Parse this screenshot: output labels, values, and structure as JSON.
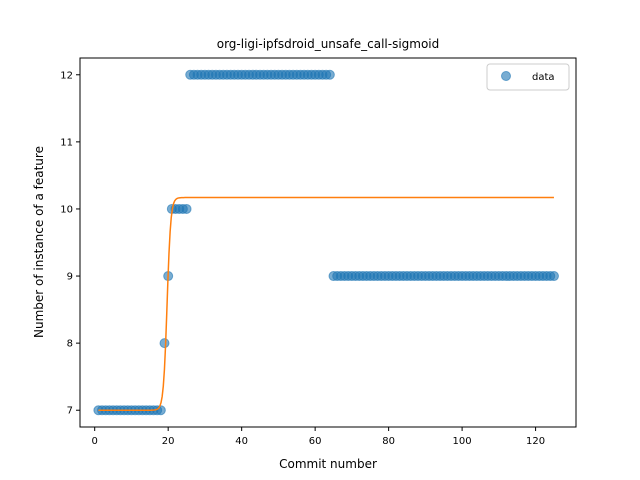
{
  "chart_data": {
    "type": "scatter",
    "title": "org-ligi-ipfsdroid_unsafe_call-sigmoid",
    "xlabel": "Commit number",
    "ylabel": "Number of instance of a feature",
    "xlim": [
      -4,
      131
    ],
    "ylim": [
      6.75,
      12.25
    ],
    "x_ticks": [
      0,
      20,
      40,
      60,
      80,
      100,
      120
    ],
    "y_ticks": [
      7,
      8,
      9,
      10,
      11,
      12
    ],
    "grid": false,
    "legend_position": "top-right",
    "series": [
      {
        "name": "data",
        "kind": "scatter",
        "color": "#1f77b4",
        "segments": [
          {
            "x_start": 1,
            "x_end": 18,
            "y": 7
          },
          {
            "x_start": 19,
            "x_end": 19,
            "y": 8
          },
          {
            "x_start": 20,
            "x_end": 20,
            "y": 9
          },
          {
            "x_start": 21,
            "x_end": 25,
            "y": 10
          },
          {
            "x_start": 26,
            "x_end": 64,
            "y": 12
          },
          {
            "x_start": 65,
            "x_end": 125,
            "y": 9
          }
        ]
      },
      {
        "name": "",
        "kind": "line",
        "color": "#ff7f0e",
        "sigmoid": {
          "x_start": 1,
          "x_end": 125,
          "low": 7.0,
          "high": 10.17,
          "midpoint": 19.7,
          "steepness": 2.0
        }
      }
    ],
    "legend": [
      {
        "label": "data",
        "series": 0
      }
    ]
  }
}
